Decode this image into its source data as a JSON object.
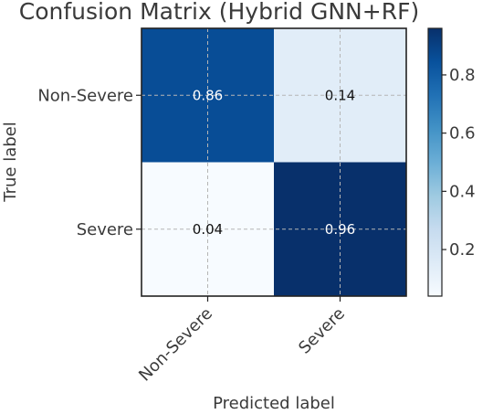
{
  "chart_data": {
    "type": "heatmap",
    "title": "Confusion Matrix (Hybrid GNN+RF)",
    "xlabel": "Predicted label",
    "ylabel": "True label",
    "x_categories": [
      "Non-Severe",
      "Severe"
    ],
    "y_categories": [
      "Non-Severe",
      "Severe"
    ],
    "values": [
      [
        0.86,
        0.14
      ],
      [
        0.04,
        0.96
      ]
    ],
    "value_labels": [
      [
        "0.86",
        "0.14"
      ],
      [
        "0.04",
        "0.96"
      ]
    ],
    "colorbar": {
      "range": [
        0.04,
        0.96
      ],
      "ticks": [
        0.2,
        0.4,
        0.6,
        0.8
      ],
      "tick_labels": [
        "0.2",
        "0.4",
        "0.6",
        "0.8"
      ]
    },
    "colormap": "Blues",
    "grid": true
  }
}
